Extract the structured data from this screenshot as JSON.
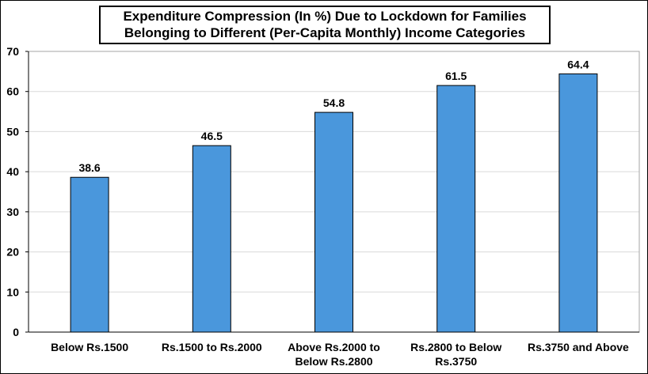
{
  "chart_data": {
    "type": "bar",
    "title_lines": [
      "Expenditure Compression (In %) Due to Lockdown for Families",
      "Belonging to Different (Per-Capita Monthly) Income Categories"
    ],
    "categories": [
      [
        "Below Rs.1500"
      ],
      [
        "Rs.1500 to Rs.2000"
      ],
      [
        "Above Rs.2000 to",
        "Below Rs.2800"
      ],
      [
        "Rs.2800 to Below",
        "Rs.3750"
      ],
      [
        "Rs.3750 and Above"
      ]
    ],
    "values": [
      38.6,
      46.5,
      54.8,
      61.5,
      64.4
    ],
    "value_labels": [
      "38.6",
      "46.5",
      "54.8",
      "61.5",
      "64.4"
    ],
    "ylim": [
      0,
      70
    ],
    "yticks": [
      0,
      10,
      20,
      30,
      40,
      50,
      60,
      70
    ],
    "grid": true,
    "legend": "none",
    "colors": {
      "bar": "#4a97dc",
      "bar_edge": "#000000",
      "grid": "#d9d9d9",
      "axis": "#000000"
    }
  }
}
